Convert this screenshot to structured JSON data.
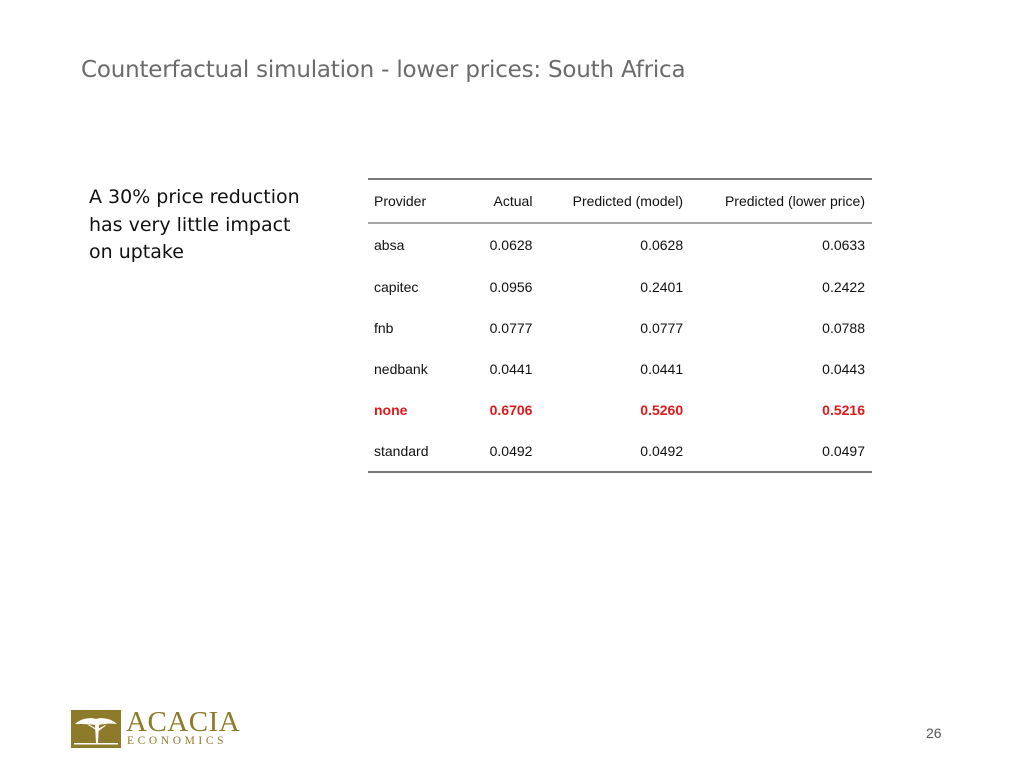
{
  "slide": {
    "title": "Counterfactual simulation - lower prices: South Africa",
    "summary": "A 30% price reduction has very little impact on uptake",
    "page_number": "26"
  },
  "table": {
    "headers": [
      "Provider",
      "Actual",
      "Predicted (model)",
      "Predicted (lower price)"
    ],
    "rows": [
      [
        "absa",
        "0.0628",
        "0.0628",
        "0.0633"
      ],
      [
        "capitec",
        "0.0956",
        "0.2401",
        "0.2422"
      ],
      [
        "fnb",
        "0.0777",
        "0.0777",
        "0.0788"
      ],
      [
        "nedbank",
        "0.0441",
        "0.0441",
        "0.0443"
      ],
      [
        "none",
        "0.6706",
        "0.5260",
        "0.5216"
      ],
      [
        "standard",
        "0.0492",
        "0.0492",
        "0.0497"
      ]
    ],
    "highlight_color": "#e0191b"
  },
  "logo": {
    "name": "ACACIA",
    "subtitle": "ECONOMICS",
    "brand_color": "#8d7a2b",
    "icon": "acacia-tree-icon"
  }
}
